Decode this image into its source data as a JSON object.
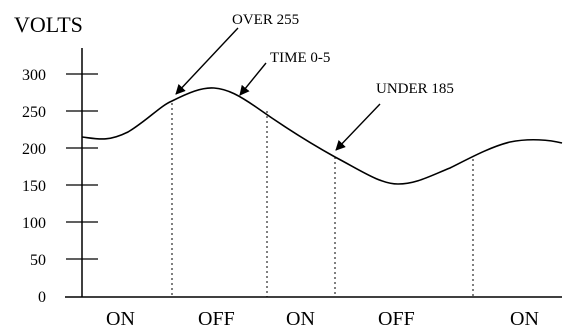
{
  "diagram": {
    "y_axis_label": "VOLTS",
    "y_ticks": [
      {
        "label": "300",
        "value": 300
      },
      {
        "label": "250",
        "value": 250
      },
      {
        "label": "200",
        "value": 200
      },
      {
        "label": "150",
        "value": 150
      },
      {
        "label": "100",
        "value": 100
      },
      {
        "label": "50",
        "value": 50
      },
      {
        "label": "0",
        "value": 0
      }
    ],
    "annotations": [
      {
        "text": "OVER 255"
      },
      {
        "text": "TIME 0-5"
      },
      {
        "text": "UNDER 185"
      }
    ],
    "states": [
      {
        "label": "ON"
      },
      {
        "label": "OFF"
      },
      {
        "label": "ON"
      },
      {
        "label": "OFF"
      },
      {
        "label": "ON"
      }
    ],
    "colors": {
      "ink": "#000000",
      "background": "#ffffff"
    }
  }
}
